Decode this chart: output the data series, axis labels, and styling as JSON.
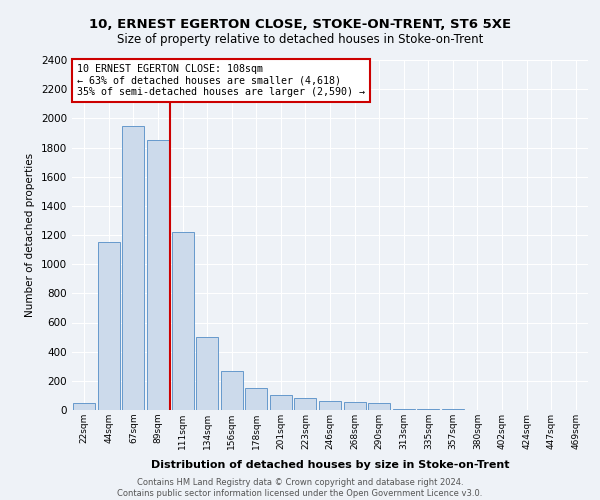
{
  "title1": "10, ERNEST EGERTON CLOSE, STOKE-ON-TRENT, ST6 5XE",
  "title2": "Size of property relative to detached houses in Stoke-on-Trent",
  "xlabel": "Distribution of detached houses by size in Stoke-on-Trent",
  "ylabel": "Number of detached properties",
  "bar_labels": [
    "22sqm",
    "44sqm",
    "67sqm",
    "89sqm",
    "111sqm",
    "134sqm",
    "156sqm",
    "178sqm",
    "201sqm",
    "223sqm",
    "246sqm",
    "268sqm",
    "290sqm",
    "313sqm",
    "335sqm",
    "357sqm",
    "380sqm",
    "402sqm",
    "424sqm",
    "447sqm",
    "469sqm"
  ],
  "bar_values": [
    50,
    1150,
    1950,
    1850,
    1220,
    500,
    270,
    150,
    100,
    80,
    65,
    55,
    45,
    10,
    5,
    4,
    3,
    3,
    2,
    2,
    2
  ],
  "bar_color": "#ccdaeb",
  "bar_edge_color": "#6699cc",
  "property_line_idx": 4,
  "annotation_title": "10 ERNEST EGERTON CLOSE: 108sqm",
  "annotation_line1": "← 63% of detached houses are smaller (4,618)",
  "annotation_line2": "35% of semi-detached houses are larger (2,590) →",
  "annotation_box_color": "#cc0000",
  "ylim": [
    0,
    2400
  ],
  "yticks": [
    0,
    200,
    400,
    600,
    800,
    1000,
    1200,
    1400,
    1600,
    1800,
    2000,
    2200,
    2400
  ],
  "footer1": "Contains HM Land Registry data © Crown copyright and database right 2024.",
  "footer2": "Contains public sector information licensed under the Open Government Licence v3.0.",
  "bg_color": "#eef2f7",
  "grid_color": "#ffffff"
}
